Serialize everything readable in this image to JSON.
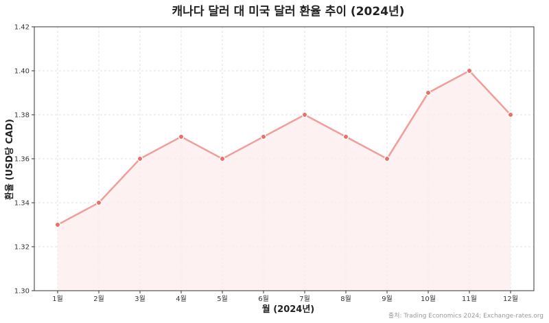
{
  "chart_data": {
    "type": "line",
    "title": "캐나다 달러 대 미국 달러 환율 추이 (2024년)",
    "xlabel": "월 (2024년)",
    "ylabel": "환율 (USD당 CAD)",
    "categories": [
      "1월",
      "2월",
      "3월",
      "4월",
      "5월",
      "6월",
      "7월",
      "8월",
      "9월",
      "10월",
      "11월",
      "12월"
    ],
    "values": [
      1.33,
      1.34,
      1.36,
      1.37,
      1.36,
      1.37,
      1.38,
      1.37,
      1.36,
      1.39,
      1.4,
      1.38
    ],
    "ylim": [
      1.3,
      1.42
    ],
    "yticks": [
      "1.30",
      "1.32",
      "1.34",
      "1.36",
      "1.38",
      "1.40",
      "1.42"
    ],
    "grid": true,
    "area_fill": true,
    "line_color": "#f0a09c",
    "marker_color": "#e8706a",
    "fill_color": "#fdecec",
    "source": "출처: Trading Economics 2024; Exchange-rates.org"
  }
}
